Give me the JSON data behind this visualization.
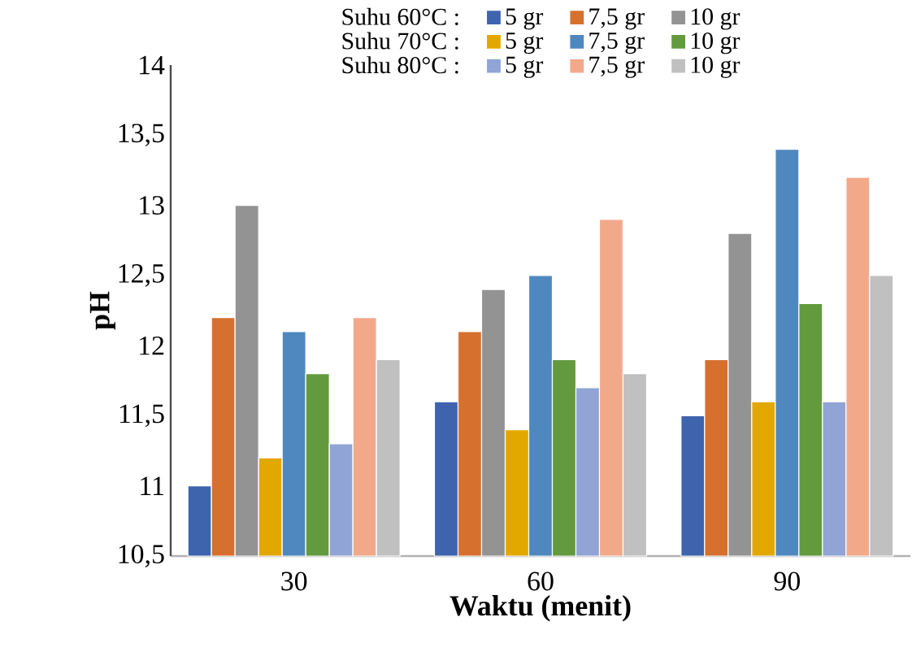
{
  "chart_data": {
    "type": "bar",
    "xlabel": "Waktu (menit)",
    "ylabel": "pH",
    "categories": [
      "30",
      "60",
      "90"
    ],
    "series": [
      {
        "name": "5 gr",
        "color": "#3e64ae",
        "values": [
          11.0,
          11.6,
          11.5
        ]
      },
      {
        "name": "7,5 gr",
        "color": "#d5702e",
        "values": [
          12.2,
          12.1,
          11.9
        ]
      },
      {
        "name": "10 gr",
        "color": "#939393",
        "values": [
          13.0,
          12.4,
          12.8
        ]
      },
      {
        "name": "5 gr",
        "color": "#e3a800",
        "values": [
          11.2,
          11.4,
          11.6
        ]
      },
      {
        "name": "7,5 gr",
        "color": "#4f88be",
        "values": [
          12.1,
          12.5,
          13.4
        ]
      },
      {
        "name": "10 gr",
        "color": "#639a3e",
        "values": [
          11.8,
          11.9,
          12.3
        ]
      },
      {
        "name": "5 gr",
        "color": "#91a4d6",
        "values": [
          11.3,
          11.7,
          11.6
        ]
      },
      {
        "name": "7,5 gr",
        "color": "#f2a98a",
        "values": [
          12.2,
          12.9,
          13.2
        ]
      },
      {
        "name": "10 gr",
        "color": "#c0c0c0",
        "values": [
          11.9,
          11.8,
          12.5
        ]
      }
    ],
    "ylim": [
      10.5,
      14
    ],
    "yticks": [
      {
        "value": 10.5,
        "label": "10,5"
      },
      11,
      {
        "value": 11.5,
        "label": "11,5"
      },
      12,
      {
        "value": 12.5,
        "label": "12,5"
      },
      13,
      {
        "value": 13.5,
        "label": "13,5"
      },
      14
    ],
    "legend": "top",
    "annotations": [
      "Suhu 60°C :",
      "Suhu 70°C :",
      "Suhu 80°C :"
    ]
  }
}
